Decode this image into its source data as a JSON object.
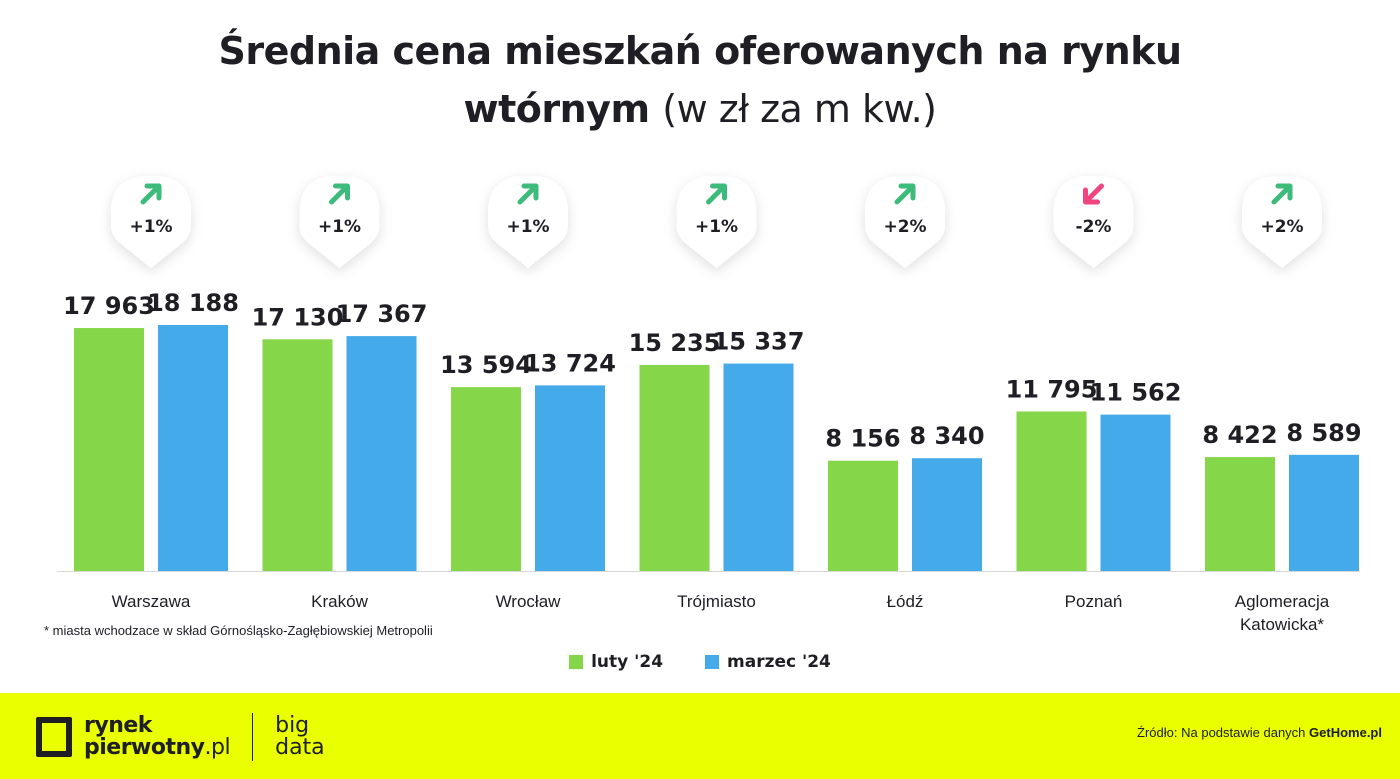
{
  "title": {
    "bold_line1": "Średnia cena mieszkań oferowanych na rynku",
    "bold_line2": "wtórnym",
    "light": "(w zł za m kw.)"
  },
  "chart_data": {
    "type": "bar",
    "categories": [
      "Warszawa",
      "Kraków",
      "Wrocław",
      "Trójmiasto",
      "Łódź",
      "Poznań",
      "Aglomeracja Katowicka*"
    ],
    "series": [
      {
        "name": "luty '24",
        "color": "#86d64a",
        "values": [
          17963,
          17130,
          13594,
          15235,
          8156,
          11795,
          8422
        ],
        "labels": [
          "17 963",
          "17 130",
          "13 594",
          "15 235",
          "8 156",
          "11 795",
          "8 422"
        ]
      },
      {
        "name": "marzec '24",
        "color": "#45aaea",
        "values": [
          18188,
          17367,
          13724,
          15337,
          8340,
          11562,
          8589
        ],
        "labels": [
          "18 188",
          "17 367",
          "13 724",
          "15 337",
          "8 340",
          "11 562",
          "8 589"
        ]
      }
    ],
    "changes": [
      {
        "label": "+1%",
        "direction": "up",
        "icon": "arrow-up-right-icon"
      },
      {
        "label": "+1%",
        "direction": "up",
        "icon": "arrow-up-right-icon"
      },
      {
        "label": "+1%",
        "direction": "up",
        "icon": "arrow-up-right-icon"
      },
      {
        "label": "+1%",
        "direction": "up",
        "icon": "arrow-up-right-icon"
      },
      {
        "label": "+2%",
        "direction": "up",
        "icon": "arrow-up-right-icon"
      },
      {
        "label": "-2%",
        "direction": "down",
        "icon": "arrow-down-left-icon"
      },
      {
        "label": "+2%",
        "direction": "up",
        "icon": "arrow-up-right-icon"
      }
    ],
    "colors": {
      "up": "#3dbb7a",
      "down": "#f0457f"
    },
    "ylim": [
      0,
      20000
    ],
    "grid": false,
    "legend_placement": "bottom"
  },
  "note": "* miasta wchodzace w skład Górnośląsko-Zagłębiowskiej Metropolii",
  "footer": {
    "logo_line1": "rynek",
    "logo_line2": "pierwotny",
    "logo_suffix": ".pl",
    "big_line1": "big",
    "big_line2": "data",
    "source_prefix": "Źródło: Na podstawie danych",
    "source_name": "GetHome.pl",
    "background": "#eaff00"
  }
}
